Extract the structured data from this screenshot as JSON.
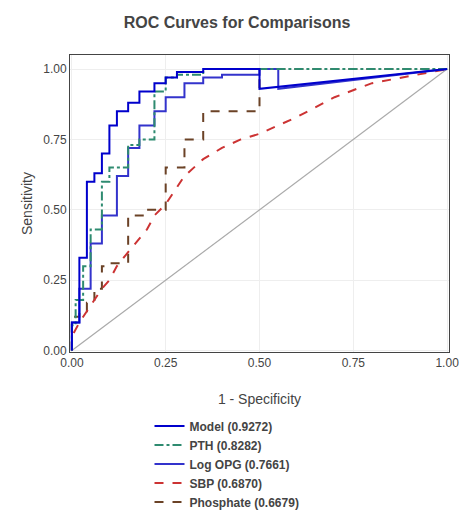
{
  "chart_data": {
    "type": "line",
    "title": "ROC Curves for Comparisons",
    "xlabel": "1 - Specificity",
    "ylabel": "Sensitivity",
    "xlim": [
      -0.005,
      1.005
    ],
    "ylim": [
      -0.005,
      1.05
    ],
    "xticks": [
      {
        "value": 0,
        "label": "0.00"
      },
      {
        "value": 0.25,
        "label": "0.25"
      },
      {
        "value": 0.5,
        "label": "0.50"
      },
      {
        "value": 0.75,
        "label": "0.75"
      },
      {
        "value": 1,
        "label": "1.00"
      }
    ],
    "yticks": [
      {
        "value": 0,
        "label": "0.00"
      },
      {
        "value": 0.25,
        "label": "0.25"
      },
      {
        "value": 0.5,
        "label": "0.50"
      },
      {
        "value": 0.75,
        "label": "0.75"
      },
      {
        "value": 1,
        "label": "1.00"
      }
    ],
    "grid": true,
    "legend": "bottom",
    "series": [
      {
        "color": "#aaaaaa",
        "line_style": "solid",
        "x": [
          0,
          1
        ],
        "values": [
          0,
          1
        ]
      },
      {
        "name": "Phosphate (0.6679)",
        "color": "#6b4226",
        "line_style": "dashed",
        "x": [
          0.0,
          0.0,
          0.02,
          0.02,
          0.04,
          0.04,
          0.06,
          0.06,
          0.08,
          0.08,
          0.1,
          0.1,
          0.15,
          0.15,
          0.2,
          0.2,
          0.25,
          0.25,
          0.3,
          0.3,
          0.35,
          0.35,
          0.5,
          0.5,
          1.0
        ],
        "values": [
          0.0,
          0.12,
          0.12,
          0.14,
          0.14,
          0.17,
          0.17,
          0.22,
          0.22,
          0.3,
          0.3,
          0.31,
          0.31,
          0.48,
          0.48,
          0.5,
          0.5,
          0.65,
          0.65,
          0.75,
          0.75,
          0.85,
          0.85,
          1.0,
          1.0
        ]
      },
      {
        "name": "SBP (0.6870)",
        "color": "#cc3333",
        "line_style": "dashed",
        "x": [
          0.0,
          0.0,
          0.02,
          0.04,
          0.06,
          0.08,
          0.1,
          0.12,
          0.15,
          0.18,
          0.2,
          0.22,
          0.25,
          0.28,
          0.3,
          0.35,
          0.4,
          0.45,
          0.5,
          0.55,
          0.6,
          0.7,
          0.8,
          1.0
        ],
        "values": [
          0.0,
          0.05,
          0.1,
          0.14,
          0.18,
          0.22,
          0.25,
          0.3,
          0.35,
          0.4,
          0.43,
          0.48,
          0.52,
          0.58,
          0.62,
          0.68,
          0.72,
          0.75,
          0.77,
          0.8,
          0.83,
          0.9,
          0.95,
          1.0
        ]
      },
      {
        "name": "Log OPG (0.7661)",
        "color": "#3333cc",
        "line_style": "solid",
        "x": [
          0.0,
          0.0,
          0.02,
          0.02,
          0.05,
          0.05,
          0.08,
          0.08,
          0.12,
          0.12,
          0.15,
          0.15,
          0.18,
          0.18,
          0.22,
          0.22,
          0.25,
          0.25,
          0.3,
          0.3,
          0.35,
          0.35,
          0.4,
          0.4,
          0.5,
          0.5,
          0.55,
          0.55,
          1.0
        ],
        "values": [
          0.0,
          0.1,
          0.1,
          0.22,
          0.22,
          0.38,
          0.38,
          0.48,
          0.48,
          0.62,
          0.62,
          0.72,
          0.72,
          0.8,
          0.8,
          0.85,
          0.85,
          0.9,
          0.9,
          0.95,
          0.95,
          0.97,
          0.97,
          0.98,
          0.98,
          1.0,
          1.0,
          0.93,
          1.0
        ]
      },
      {
        "name": "PTH (0.8282)",
        "color": "#2e8b70",
        "line_style": "dashdot",
        "x": [
          0.0,
          0.0,
          0.01,
          0.01,
          0.03,
          0.03,
          0.05,
          0.05,
          0.08,
          0.08,
          0.1,
          0.1,
          0.15,
          0.15,
          0.18,
          0.18,
          0.22,
          0.22,
          0.25,
          0.25,
          0.28,
          0.28,
          0.35,
          0.35,
          1.0
        ],
        "values": [
          0.0,
          0.09,
          0.09,
          0.18,
          0.18,
          0.3,
          0.3,
          0.43,
          0.43,
          0.6,
          0.6,
          0.65,
          0.65,
          0.73,
          0.73,
          0.75,
          0.75,
          0.92,
          0.92,
          0.97,
          0.97,
          0.98,
          0.98,
          1.0,
          1.0
        ]
      },
      {
        "name": "Model (0.9272)",
        "color": "#0000cc",
        "line_style": "solid",
        "x": [
          0.0,
          0.0,
          0.02,
          0.02,
          0.04,
          0.04,
          0.06,
          0.06,
          0.08,
          0.08,
          0.1,
          0.1,
          0.12,
          0.12,
          0.15,
          0.15,
          0.18,
          0.18,
          0.22,
          0.22,
          0.25,
          0.25,
          0.28,
          0.28,
          0.35,
          0.35,
          0.5,
          0.5,
          1.0
        ],
        "values": [
          0.0,
          0.1,
          0.1,
          0.33,
          0.33,
          0.6,
          0.6,
          0.63,
          0.63,
          0.7,
          0.7,
          0.8,
          0.8,
          0.85,
          0.85,
          0.88,
          0.88,
          0.92,
          0.92,
          0.95,
          0.95,
          0.97,
          0.97,
          0.99,
          0.99,
          1.0,
          1.0,
          0.93,
          1.0
        ]
      }
    ]
  }
}
